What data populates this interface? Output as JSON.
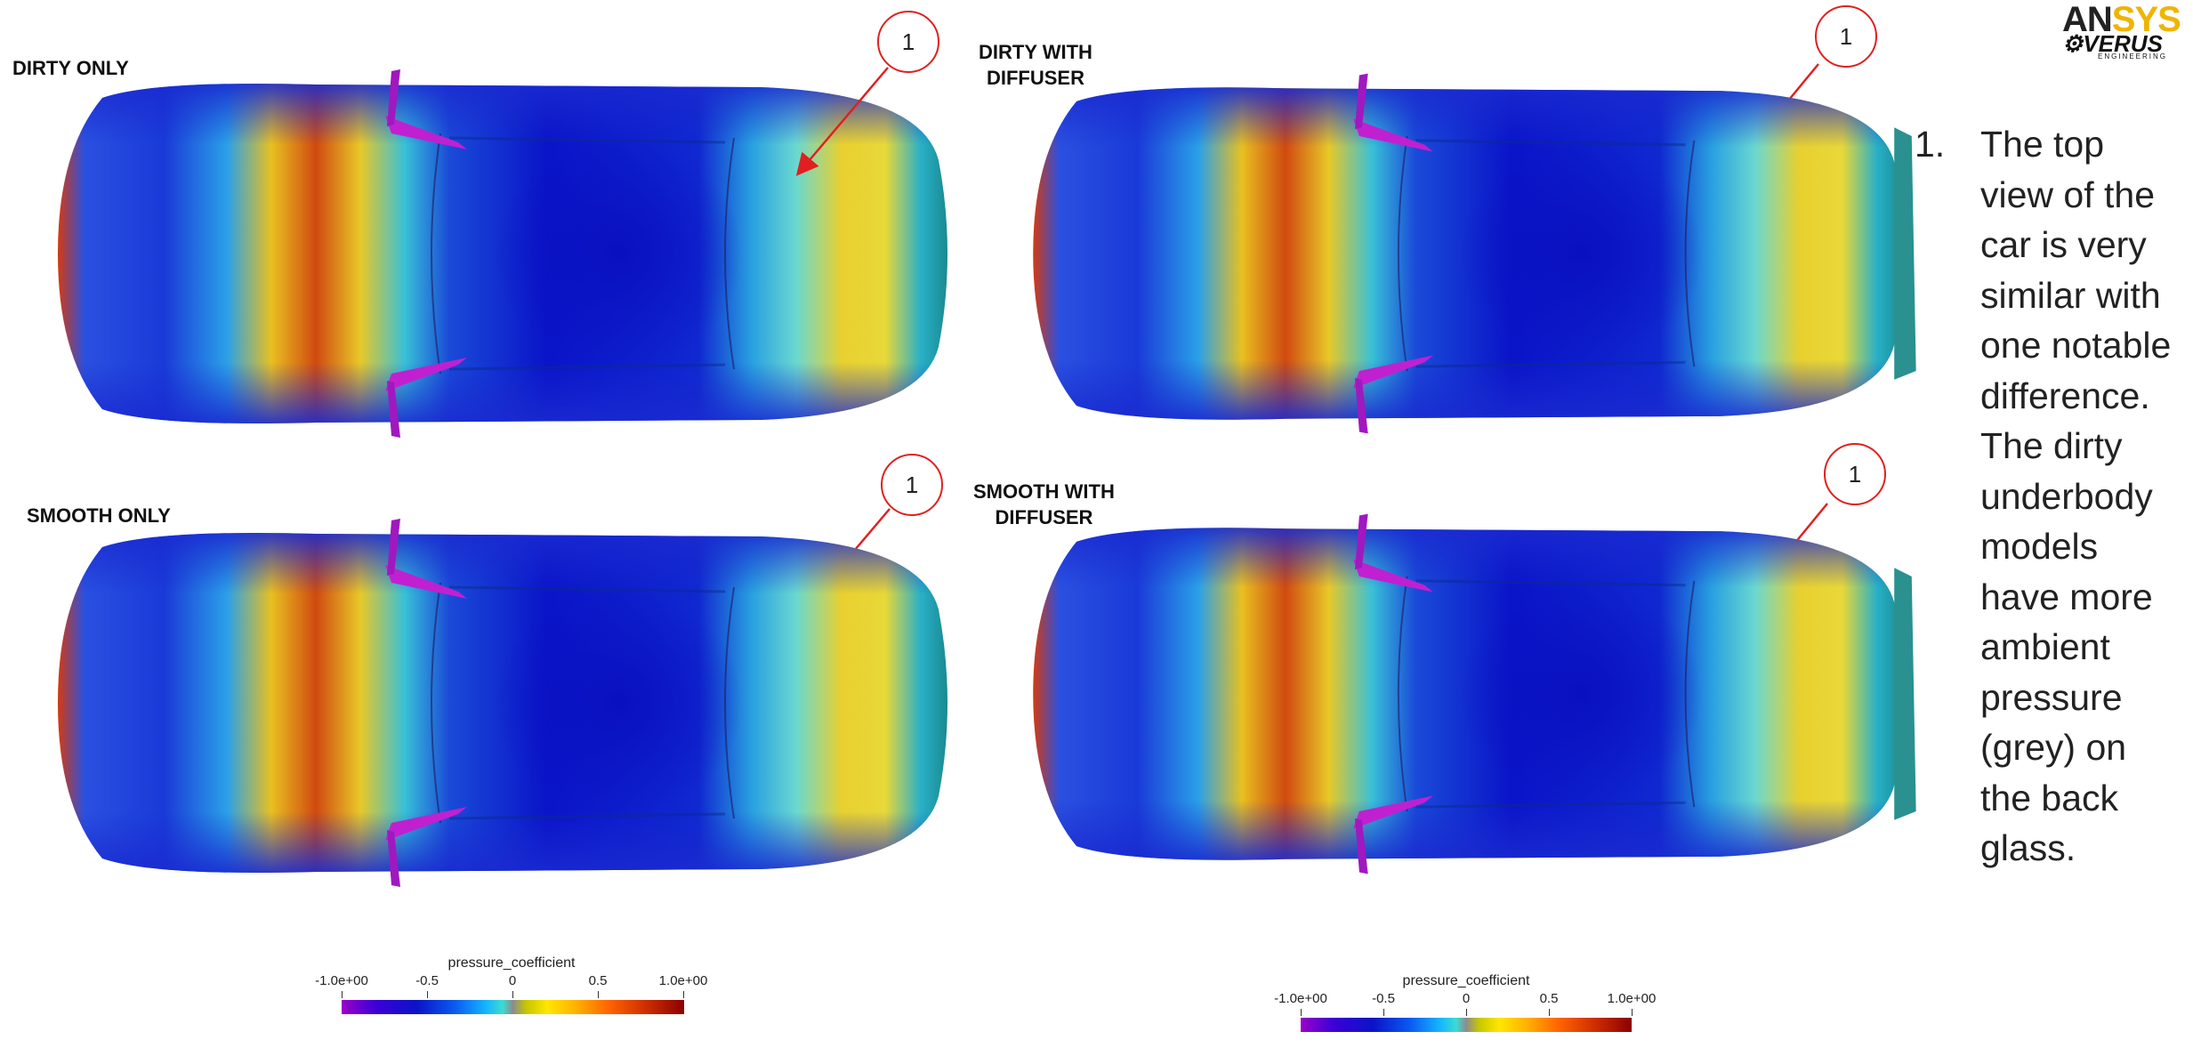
{
  "logo": {
    "brand_part1": "AN",
    "brand_part2": "SYS",
    "partner": "VERUS",
    "partner_sub": "ENGINEERING"
  },
  "panels": [
    {
      "label_lines": [
        "DIRTY ONLY"
      ],
      "marker": "1"
    },
    {
      "label_lines": [
        "DIRTY WITH",
        "DIFFUSER"
      ],
      "marker": "1"
    },
    {
      "label_lines": [
        "SMOOTH ONLY"
      ],
      "marker": "1"
    },
    {
      "label_lines": [
        "SMOOTH WITH",
        "DIFFUSER"
      ],
      "marker": "1"
    }
  ],
  "colorbars": [
    {
      "title": "pressure_coefficient",
      "ticks": [
        "-1.0e+00",
        "-0.5",
        "0",
        "0.5",
        "1.0e+00"
      ]
    },
    {
      "title": "pressure_coefficient",
      "ticks": [
        "-1.0e+00",
        "-0.5",
        "0",
        "0.5",
        "1.0e+00"
      ]
    }
  ],
  "note": {
    "number": "1.",
    "lines": [
      "The top",
      "view of the",
      "car is very",
      "similar with",
      "one notable",
      "difference.",
      "The dirty",
      "underbody",
      "models",
      "have more",
      "ambient",
      "pressure",
      "(grey) on",
      "the back",
      "glass."
    ]
  },
  "colors": {
    "marker_red": "#e02020",
    "accent_yellow": "#f0b400"
  }
}
